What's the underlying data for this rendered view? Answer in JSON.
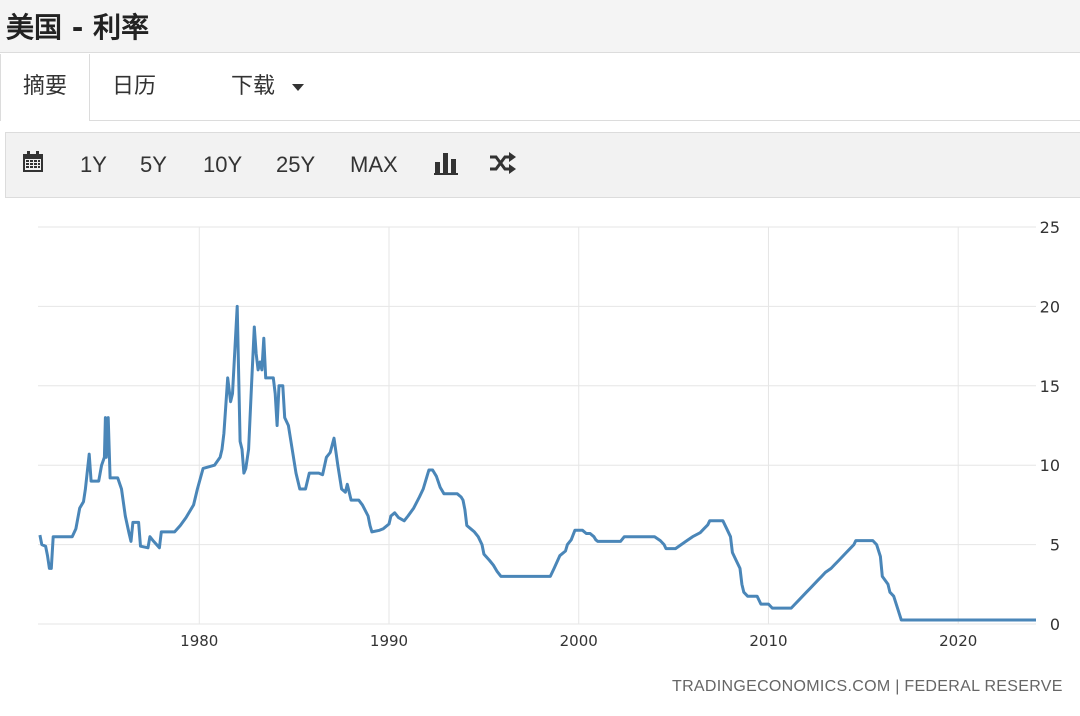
{
  "page": {
    "title": "美国 - 利率"
  },
  "tabs": [
    {
      "label": "摘要",
      "active": true
    },
    {
      "label": "日历",
      "active": false
    },
    {
      "label": "下载",
      "active": false,
      "dropdown": true
    }
  ],
  "toolbar": {
    "calendar_icon": "calendar-icon",
    "ranges": [
      "1Y",
      "5Y",
      "10Y",
      "25Y",
      "MAX"
    ],
    "chart_type_icon": "bar-chart-icon",
    "compare_icon": "shuffle-icon"
  },
  "attribution": "TRADINGECONOMICS.COM | FEDERAL RESERVE",
  "colors": {
    "line": "#4a86b8",
    "grid": "#e6e6e6"
  },
  "chart_data": {
    "type": "line",
    "title": "",
    "xlabel": "",
    "ylabel": "",
    "xlim": [
      1971.5,
      2024.1
    ],
    "ylim": [
      0,
      25
    ],
    "x_ticks": [
      1980,
      1990,
      2000,
      2010,
      2020
    ],
    "y_ticks": [
      0,
      5,
      10,
      15,
      20,
      25
    ],
    "y_axis_side": "right",
    "grid": true,
    "legend": "none",
    "series": [
      {
        "points": [
          [
            1971.6,
            5.6
          ],
          [
            1971.7,
            5.0
          ],
          [
            1971.9,
            4.9
          ],
          [
            1972.0,
            4.3
          ],
          [
            1972.1,
            3.5
          ],
          [
            1972.2,
            3.5
          ],
          [
            1972.3,
            5.5
          ],
          [
            1973.0,
            5.5
          ],
          [
            1973.3,
            5.5
          ],
          [
            1973.5,
            6.0
          ],
          [
            1973.7,
            7.3
          ],
          [
            1973.9,
            7.7
          ],
          [
            1974.0,
            8.5
          ],
          [
            1974.2,
            10.7
          ],
          [
            1974.3,
            9.0
          ],
          [
            1974.7,
            9.0
          ],
          [
            1974.85,
            10.0
          ],
          [
            1975.0,
            10.5
          ],
          [
            1975.05,
            13.0
          ],
          [
            1975.1,
            10.5
          ],
          [
            1975.2,
            13.0
          ],
          [
            1975.3,
            9.2
          ],
          [
            1975.7,
            9.2
          ],
          [
            1975.9,
            8.5
          ],
          [
            1976.1,
            6.8
          ],
          [
            1976.3,
            5.7
          ],
          [
            1976.4,
            5.2
          ],
          [
            1976.5,
            6.4
          ],
          [
            1976.8,
            6.4
          ],
          [
            1976.9,
            4.9
          ],
          [
            1977.3,
            4.8
          ],
          [
            1977.4,
            5.5
          ],
          [
            1977.6,
            5.2
          ],
          [
            1977.9,
            4.8
          ],
          [
            1978.0,
            5.8
          ],
          [
            1978.7,
            5.8
          ],
          [
            1979.0,
            6.2
          ],
          [
            1979.3,
            6.7
          ],
          [
            1979.7,
            7.5
          ],
          [
            1979.9,
            8.5
          ],
          [
            1980.2,
            9.8
          ],
          [
            1980.8,
            10.0
          ],
          [
            1981.1,
            10.5
          ],
          [
            1981.2,
            11.0
          ],
          [
            1981.3,
            12.0
          ],
          [
            1981.5,
            15.5
          ],
          [
            1981.65,
            14.0
          ],
          [
            1981.75,
            14.5
          ],
          [
            1982.0,
            20.0
          ],
          [
            1982.15,
            11.5
          ],
          [
            1982.25,
            11.0
          ],
          [
            1982.35,
            9.5
          ],
          [
            1982.45,
            9.8
          ],
          [
            1982.6,
            11.0
          ],
          [
            1982.75,
            15.0
          ],
          [
            1982.9,
            18.7
          ],
          [
            1983.0,
            17.0
          ],
          [
            1983.1,
            16.0
          ],
          [
            1983.2,
            16.5
          ],
          [
            1983.3,
            16.0
          ],
          [
            1983.4,
            18.0
          ],
          [
            1983.5,
            15.5
          ],
          [
            1983.9,
            15.5
          ],
          [
            1984.0,
            14.5
          ],
          [
            1984.1,
            12.5
          ],
          [
            1984.2,
            15.0
          ],
          [
            1984.4,
            15.0
          ],
          [
            1984.5,
            13.0
          ],
          [
            1984.7,
            12.5
          ],
          [
            1984.9,
            11.0
          ],
          [
            1985.1,
            9.5
          ],
          [
            1985.3,
            8.5
          ],
          [
            1985.6,
            8.5
          ],
          [
            1985.8,
            9.5
          ],
          [
            1986.3,
            9.5
          ],
          [
            1986.5,
            9.4
          ],
          [
            1986.7,
            10.5
          ],
          [
            1986.9,
            10.8
          ],
          [
            1987.1,
            11.7
          ],
          [
            1987.3,
            10.0
          ],
          [
            1987.5,
            8.5
          ],
          [
            1987.7,
            8.3
          ],
          [
            1987.8,
            8.8
          ],
          [
            1988.0,
            7.8
          ],
          [
            1988.4,
            7.8
          ],
          [
            1988.6,
            7.5
          ],
          [
            1988.9,
            6.8
          ],
          [
            1989.0,
            6.2
          ],
          [
            1989.1,
            5.8
          ],
          [
            1989.5,
            5.9
          ],
          [
            1989.7,
            6.0
          ],
          [
            1990.0,
            6.3
          ],
          [
            1990.1,
            6.8
          ],
          [
            1990.3,
            7.0
          ],
          [
            1990.5,
            6.7
          ],
          [
            1990.8,
            6.5
          ],
          [
            1991.0,
            6.8
          ],
          [
            1991.3,
            7.3
          ],
          [
            1991.6,
            8.0
          ],
          [
            1991.8,
            8.5
          ],
          [
            1992.0,
            9.3
          ],
          [
            1992.1,
            9.7
          ],
          [
            1992.3,
            9.7
          ],
          [
            1992.5,
            9.3
          ],
          [
            1992.7,
            8.6
          ],
          [
            1992.9,
            8.2
          ],
          [
            1993.0,
            8.2
          ],
          [
            1993.6,
            8.2
          ],
          [
            1993.8,
            8.0
          ],
          [
            1993.9,
            7.8
          ],
          [
            1994.0,
            7.2
          ],
          [
            1994.1,
            6.2
          ],
          [
            1994.3,
            6.0
          ],
          [
            1994.5,
            5.8
          ],
          [
            1994.7,
            5.5
          ],
          [
            1994.9,
            5.0
          ],
          [
            1995.0,
            4.4
          ],
          [
            1995.3,
            4.0
          ],
          [
            1995.5,
            3.7
          ],
          [
            1995.7,
            3.3
          ],
          [
            1995.9,
            3.0
          ],
          [
            1996.2,
            3.0
          ],
          [
            1998.5,
            3.0
          ],
          [
            1998.7,
            3.5
          ],
          [
            1999.0,
            4.3
          ],
          [
            1999.3,
            4.6
          ],
          [
            1999.4,
            5.0
          ],
          [
            1999.6,
            5.3
          ],
          [
            1999.8,
            5.9
          ],
          [
            2000.2,
            5.9
          ],
          [
            2000.4,
            5.7
          ],
          [
            2000.6,
            5.7
          ],
          [
            2000.8,
            5.5
          ],
          [
            2000.9,
            5.3
          ],
          [
            2001.0,
            5.2
          ],
          [
            2002.2,
            5.2
          ],
          [
            2002.4,
            5.5
          ],
          [
            2004.0,
            5.5
          ],
          [
            2004.3,
            5.25
          ],
          [
            2004.5,
            5.0
          ],
          [
            2004.6,
            4.75
          ],
          [
            2005.1,
            4.75
          ],
          [
            2005.4,
            5.0
          ],
          [
            2005.7,
            5.25
          ],
          [
            2006.0,
            5.5
          ],
          [
            2006.4,
            5.75
          ],
          [
            2006.6,
            6.0
          ],
          [
            2006.8,
            6.25
          ],
          [
            2006.9,
            6.5
          ],
          [
            2007.6,
            6.5
          ],
          [
            2007.8,
            6.0
          ],
          [
            2008.0,
            5.5
          ],
          [
            2008.1,
            4.5
          ],
          [
            2008.3,
            4.0
          ],
          [
            2008.5,
            3.5
          ],
          [
            2008.6,
            2.5
          ],
          [
            2008.7,
            2.0
          ],
          [
            2008.9,
            1.75
          ],
          [
            2009.1,
            1.75
          ],
          [
            2009.2,
            1.75
          ],
          [
            2009.4,
            1.75
          ],
          [
            2009.6,
            1.25
          ],
          [
            2010.0,
            1.25
          ],
          [
            2010.2,
            1.0
          ],
          [
            2011.2,
            1.0
          ],
          [
            2011.4,
            1.25
          ],
          [
            2011.6,
            1.5
          ],
          [
            2011.8,
            1.75
          ],
          [
            2012.0,
            2.0
          ],
          [
            2012.2,
            2.25
          ],
          [
            2012.4,
            2.5
          ],
          [
            2012.6,
            2.75
          ],
          [
            2012.8,
            3.0
          ],
          [
            2013.0,
            3.25
          ],
          [
            2013.3,
            3.5
          ],
          [
            2013.5,
            3.75
          ],
          [
            2013.7,
            4.0
          ],
          [
            2013.9,
            4.25
          ],
          [
            2014.1,
            4.5
          ],
          [
            2014.3,
            4.75
          ],
          [
            2014.5,
            5.0
          ],
          [
            2014.6,
            5.25
          ],
          [
            2015.5,
            5.25
          ],
          [
            2015.7,
            5.0
          ],
          [
            2015.9,
            4.25
          ],
          [
            2016.0,
            3.0
          ],
          [
            2016.3,
            2.5
          ],
          [
            2016.4,
            2.0
          ],
          [
            2016.6,
            1.75
          ],
          [
            2016.8,
            1.0
          ],
          [
            2017.0,
            0.25
          ],
          [
            2024.1,
            0.25
          ]
        ]
      }
    ]
  }
}
